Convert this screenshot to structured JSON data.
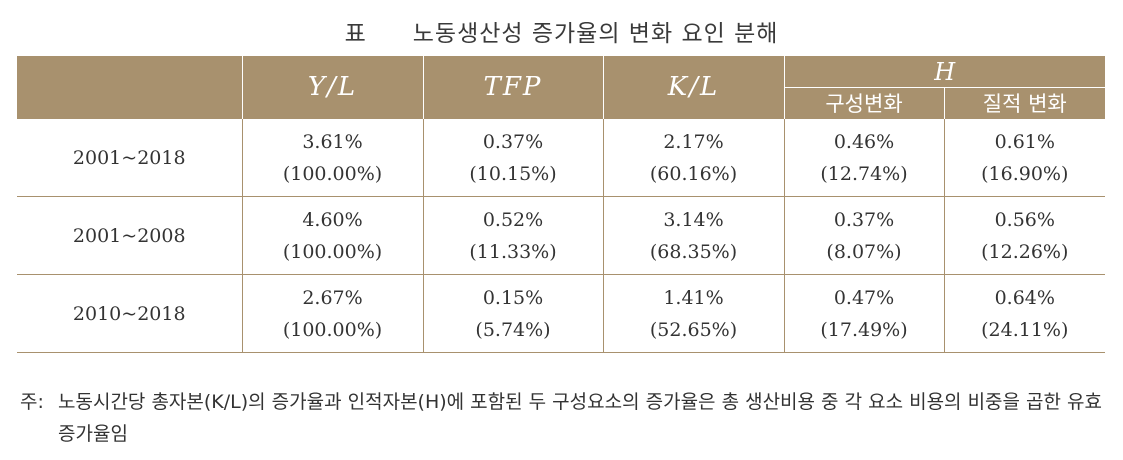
{
  "title": {
    "label": "표",
    "text": "노동생산성 증가율의 변화 요인 분해"
  },
  "table": {
    "headers": {
      "yl": "Y/L",
      "tfp": "TFP",
      "kl": "K/L",
      "h": "H",
      "composition": "구성변화",
      "quality": "질적 변화"
    },
    "rows": [
      {
        "period": "2001~2018",
        "cells": [
          {
            "value": "3.61%",
            "share": "(100.00%)"
          },
          {
            "value": "0.37%",
            "share": "(10.15%)"
          },
          {
            "value": "2.17%",
            "share": "(60.16%)"
          },
          {
            "value": "0.46%",
            "share": "(12.74%)"
          },
          {
            "value": "0.61%",
            "share": "(16.90%)"
          }
        ]
      },
      {
        "period": "2001~2008",
        "cells": [
          {
            "value": "4.60%",
            "share": "(100.00%)"
          },
          {
            "value": "0.52%",
            "share": "(11.33%)"
          },
          {
            "value": "3.14%",
            "share": "(68.35%)"
          },
          {
            "value": "0.37%",
            "share": "(8.07%)"
          },
          {
            "value": "0.56%",
            "share": "(12.26%)"
          }
        ]
      },
      {
        "period": "2010~2018",
        "cells": [
          {
            "value": "2.67%",
            "share": "(100.00%)"
          },
          {
            "value": "0.15%",
            "share": "(5.74%)"
          },
          {
            "value": "1.41%",
            "share": "(52.65%)"
          },
          {
            "value": "0.47%",
            "share": "(17.49%)"
          },
          {
            "value": "0.64%",
            "share": "(24.11%)"
          }
        ]
      }
    ]
  },
  "note": {
    "prefix": "주:",
    "text": "노동시간당 총자본(K/L)의 증가율과 인적자본(H)에 포함된 두 구성요소의 증가율은 총 생산비용 중 각 요소 비용의 비중을 곱한 유효증가율임"
  }
}
